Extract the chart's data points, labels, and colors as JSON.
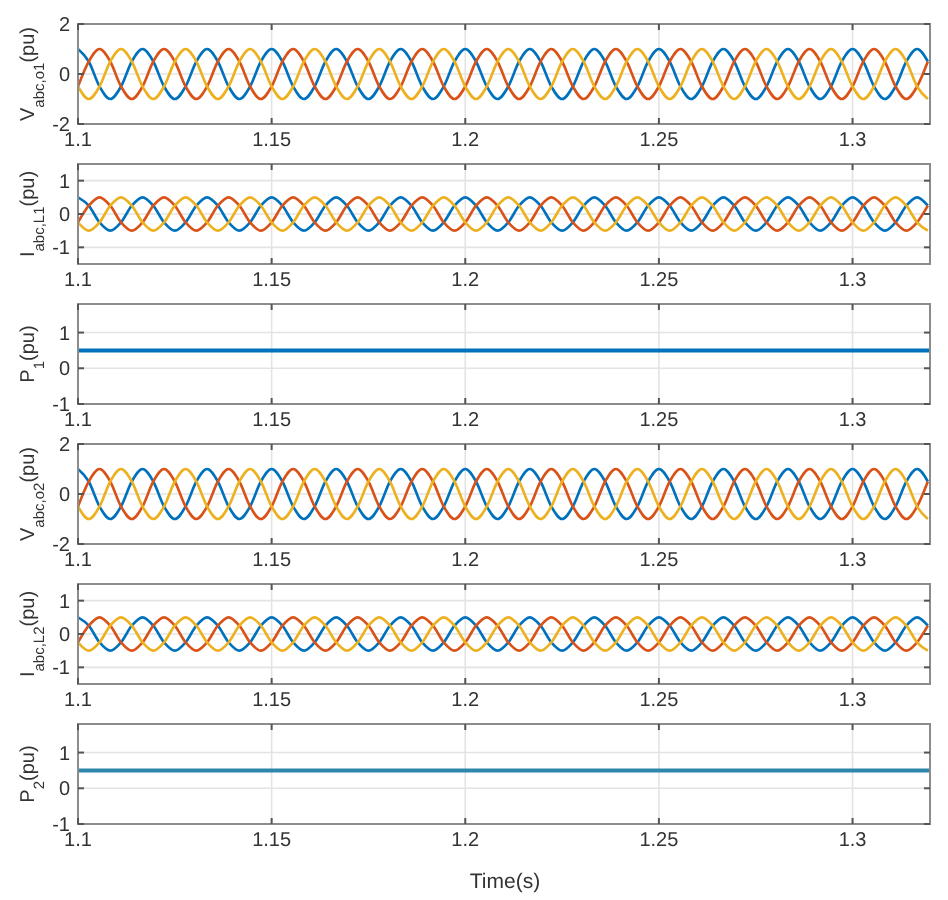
{
  "chart_data": [
    {
      "type": "line",
      "ylabel": "V$_{abc,o1}$(pu)",
      "xlim": [
        1.1,
        1.32
      ],
      "xticks": [
        1.1,
        1.15,
        1.2,
        1.25,
        1.3
      ],
      "ylim": [
        -2,
        2
      ],
      "yticks": [
        -2,
        0,
        2
      ],
      "grid": true,
      "x": [
        1.1,
        1.10278,
        1.10556,
        1.10833,
        1.11111,
        1.11389,
        1.11667,
        1.11944,
        1.12222,
        1.125,
        1.12778,
        1.13056,
        1.13333,
        1.13611,
        1.13889,
        1.14167,
        1.14444,
        1.14722,
        1.15,
        1.15278,
        1.15556,
        1.15833,
        1.16111,
        1.16389,
        1.16667,
        1.16944,
        1.17222,
        1.175,
        1.17778,
        1.18056,
        1.18333,
        1.18611,
        1.18889,
        1.19167,
        1.19444,
        1.19722,
        1.2,
        1.20278,
        1.20556,
        1.20833,
        1.21111,
        1.21389,
        1.21667,
        1.21944,
        1.22222,
        1.225,
        1.22778,
        1.23056,
        1.23333,
        1.23611,
        1.23889,
        1.24167,
        1.24444,
        1.24722,
        1.25,
        1.25278,
        1.25556,
        1.25833,
        1.26111,
        1.26389,
        1.26667,
        1.26944,
        1.27222,
        1.275,
        1.27778,
        1.28056,
        1.28333,
        1.28611,
        1.28889,
        1.29167,
        1.29444,
        1.29722,
        1.3,
        1.30278,
        1.30556,
        1.30833,
        1.31111,
        1.31389,
        1.31667,
        1.31944
      ],
      "series": [
        {
          "color": "#0072bd",
          "values": [
            1,
            0.5,
            -0.5,
            -1,
            -0.5,
            0.5,
            1,
            0.5,
            -0.5,
            -1,
            -0.5,
            0.5,
            1,
            0.5,
            -0.5,
            -1,
            -0.5,
            0.5,
            1,
            0.5,
            -0.5,
            -1,
            -0.5,
            0.5,
            1,
            0.5,
            -0.5,
            -1,
            -0.5,
            0.5,
            1,
            0.5,
            -0.5,
            -1,
            -0.5,
            0.5,
            1,
            0.5,
            -0.5,
            -1,
            -0.5,
            0.5,
            1,
            0.5,
            -0.5,
            -1,
            -0.5,
            0.5,
            1,
            0.5,
            -0.5,
            -1,
            -0.5,
            0.5,
            1,
            0.5,
            -0.5,
            -1,
            -0.5,
            0.5,
            1,
            0.5,
            -0.5,
            -1,
            -0.5,
            0.5,
            1,
            0.5,
            -0.5,
            -1,
            -0.5,
            0.5,
            1,
            0.5,
            -0.5,
            -1,
            -0.5,
            0.5,
            1,
            0.5
          ]
        },
        {
          "color": "#d95319",
          "values": [
            -0.5,
            0.5,
            1,
            0.5,
            -0.5,
            -1,
            -0.5,
            0.5,
            1,
            0.5,
            -0.5,
            -1,
            -0.5,
            0.5,
            1,
            0.5,
            -0.5,
            -1,
            -0.5,
            0.5,
            1,
            0.5,
            -0.5,
            -1,
            -0.5,
            0.5,
            1,
            0.5,
            -0.5,
            -1,
            -0.5,
            0.5,
            1,
            0.5,
            -0.5,
            -1,
            -0.5,
            0.5,
            1,
            0.5,
            -0.5,
            -1,
            -0.5,
            0.5,
            1,
            0.5,
            -0.5,
            -1,
            -0.5,
            0.5,
            1,
            0.5,
            -0.5,
            -1,
            -0.5,
            0.5,
            1,
            0.5,
            -0.5,
            -1,
            -0.5,
            0.5,
            1,
            0.5,
            -0.5,
            -1,
            -0.5,
            0.5,
            1,
            0.5,
            -0.5,
            -1,
            -0.5,
            0.5,
            1,
            0.5,
            -0.5,
            -1,
            -0.5,
            0.5
          ]
        },
        {
          "color": "#edb120",
          "values": [
            -0.5,
            -1,
            -0.5,
            0.5,
            1,
            0.5,
            -0.5,
            -1,
            -0.5,
            0.5,
            1,
            0.5,
            -0.5,
            -1,
            -0.5,
            0.5,
            1,
            0.5,
            -0.5,
            -1,
            -0.5,
            0.5,
            1,
            0.5,
            -0.5,
            -1,
            -0.5,
            0.5,
            1,
            0.5,
            -0.5,
            -1,
            -0.5,
            0.5,
            1,
            0.5,
            -0.5,
            -1,
            -0.5,
            0.5,
            1,
            0.5,
            -0.5,
            -1,
            -0.5,
            0.5,
            1,
            0.5,
            -0.5,
            -1,
            -0.5,
            0.5,
            1,
            0.5,
            -0.5,
            -1,
            -0.5,
            0.5,
            1,
            0.5,
            -0.5,
            -1,
            -0.5,
            0.5,
            1,
            0.5,
            -0.5,
            -1,
            -0.5,
            0.5,
            1,
            0.5,
            -0.5,
            -1,
            -0.5,
            0.5,
            1,
            0.5,
            -0.5,
            -1
          ]
        }
      ]
    },
    {
      "type": "line",
      "ylabel": "I$_{abc,L1}$(pu)",
      "xlim": [
        1.1,
        1.32
      ],
      "xticks": [
        1.1,
        1.15,
        1.2,
        1.25,
        1.3
      ],
      "ylim": [
        -1.5,
        1.5
      ],
      "yticks": [
        -1,
        0,
        1
      ],
      "grid": true,
      "x": [
        1.1,
        1.10278,
        1.10556,
        1.10833,
        1.11111,
        1.11389,
        1.11667,
        1.11944,
        1.12222,
        1.125,
        1.12778,
        1.13056,
        1.13333,
        1.13611,
        1.13889,
        1.14167,
        1.14444,
        1.14722,
        1.15,
        1.15278,
        1.15556,
        1.15833,
        1.16111,
        1.16389,
        1.16667,
        1.16944,
        1.17222,
        1.175,
        1.17778,
        1.18056,
        1.18333,
        1.18611,
        1.18889,
        1.19167,
        1.19444,
        1.19722,
        1.2,
        1.20278,
        1.20556,
        1.20833,
        1.21111,
        1.21389,
        1.21667,
        1.21944,
        1.22222,
        1.225,
        1.22778,
        1.23056,
        1.23333,
        1.23611,
        1.23889,
        1.24167,
        1.24444,
        1.24722,
        1.25,
        1.25278,
        1.25556,
        1.25833,
        1.26111,
        1.26389,
        1.26667,
        1.26944,
        1.27222,
        1.275,
        1.27778,
        1.28056,
        1.28333,
        1.28611,
        1.28889,
        1.29167,
        1.29444,
        1.29722,
        1.3,
        1.30278,
        1.30556,
        1.30833,
        1.31111,
        1.31389,
        1.31667,
        1.31944
      ],
      "series": [
        {
          "color": "#0072bd",
          "values": [
            0.5,
            0.25,
            -0.25,
            -0.5,
            -0.25,
            0.25,
            0.5,
            0.25,
            -0.25,
            -0.5,
            -0.25,
            0.25,
            0.5,
            0.25,
            -0.25,
            -0.5,
            -0.25,
            0.25,
            0.5,
            0.25,
            -0.25,
            -0.5,
            -0.25,
            0.25,
            0.5,
            0.25,
            -0.25,
            -0.5,
            -0.25,
            0.25,
            0.5,
            0.25,
            -0.25,
            -0.5,
            -0.25,
            0.25,
            0.5,
            0.25,
            -0.25,
            -0.5,
            -0.25,
            0.25,
            0.5,
            0.25,
            -0.25,
            -0.5,
            -0.25,
            0.25,
            0.5,
            0.25,
            -0.25,
            -0.5,
            -0.25,
            0.25,
            0.5,
            0.25,
            -0.25,
            -0.5,
            -0.25,
            0.25,
            0.5,
            0.25,
            -0.25,
            -0.5,
            -0.25,
            0.25,
            0.5,
            0.25,
            -0.25,
            -0.5,
            -0.25,
            0.25,
            0.5,
            0.25,
            -0.25,
            -0.5,
            -0.25,
            0.25,
            0.5,
            0.25
          ]
        },
        {
          "color": "#d95319",
          "values": [
            -0.25,
            0.25,
            0.5,
            0.25,
            -0.25,
            -0.5,
            -0.25,
            0.25,
            0.5,
            0.25,
            -0.25,
            -0.5,
            -0.25,
            0.25,
            0.5,
            0.25,
            -0.25,
            -0.5,
            -0.25,
            0.25,
            0.5,
            0.25,
            -0.25,
            -0.5,
            -0.25,
            0.25,
            0.5,
            0.25,
            -0.25,
            -0.5,
            -0.25,
            0.25,
            0.5,
            0.25,
            -0.25,
            -0.5,
            -0.25,
            0.25,
            0.5,
            0.25,
            -0.25,
            -0.5,
            -0.25,
            0.25,
            0.5,
            0.25,
            -0.25,
            -0.5,
            -0.25,
            0.25,
            0.5,
            0.25,
            -0.25,
            -0.5,
            -0.25,
            0.25,
            0.5,
            0.25,
            -0.25,
            -0.5,
            -0.25,
            0.25,
            0.5,
            0.25,
            -0.25,
            -0.5,
            -0.25,
            0.25,
            0.5,
            0.25,
            -0.25,
            -0.5,
            -0.25,
            0.25,
            0.5,
            0.25,
            -0.25,
            -0.5,
            -0.25,
            0.25
          ]
        },
        {
          "color": "#edb120",
          "values": [
            -0.25,
            -0.5,
            -0.25,
            0.25,
            0.5,
            0.25,
            -0.25,
            -0.5,
            -0.25,
            0.25,
            0.5,
            0.25,
            -0.25,
            -0.5,
            -0.25,
            0.25,
            0.5,
            0.25,
            -0.25,
            -0.5,
            -0.25,
            0.25,
            0.5,
            0.25,
            -0.25,
            -0.5,
            -0.25,
            0.25,
            0.5,
            0.25,
            -0.25,
            -0.5,
            -0.25,
            0.25,
            0.5,
            0.25,
            -0.25,
            -0.5,
            -0.25,
            0.25,
            0.5,
            0.25,
            -0.25,
            -0.5,
            -0.25,
            0.25,
            0.5,
            0.25,
            -0.25,
            -0.5,
            -0.25,
            0.25,
            0.5,
            0.25,
            -0.25,
            -0.5,
            -0.25,
            0.25,
            0.5,
            0.25,
            -0.25,
            -0.5,
            -0.25,
            0.25,
            0.5,
            0.25,
            -0.25,
            -0.5,
            -0.25,
            0.25,
            0.5,
            0.25,
            -0.25,
            -0.5,
            -0.25,
            0.25,
            0.5,
            0.25,
            -0.25,
            -0.5
          ]
        }
      ]
    },
    {
      "type": "line",
      "ylabel": "P$_{1}$(pu)",
      "xlim": [
        1.1,
        1.32
      ],
      "xticks": [
        1.1,
        1.15,
        1.2,
        1.25,
        1.3
      ],
      "ylim": [
        -1,
        1.8
      ],
      "yticks": [
        -1,
        0,
        1
      ],
      "grid": true,
      "x": [
        1.1,
        1.32
      ],
      "series": [
        {
          "color": "#0072bd",
          "values": [
            0.5,
            0.5
          ]
        }
      ]
    },
    {
      "type": "line",
      "ylabel": "V$_{abc,o2}$(pu)",
      "xlim": [
        1.1,
        1.32
      ],
      "xticks": [
        1.1,
        1.15,
        1.2,
        1.25,
        1.3
      ],
      "ylim": [
        -2,
        2
      ],
      "yticks": [
        -2,
        0,
        2
      ],
      "grid": true,
      "x": [
        1.1,
        1.10278,
        1.10556,
        1.10833,
        1.11111,
        1.11389,
        1.11667,
        1.11944,
        1.12222,
        1.125,
        1.12778,
        1.13056,
        1.13333,
        1.13611,
        1.13889,
        1.14167,
        1.14444,
        1.14722,
        1.15,
        1.15278,
        1.15556,
        1.15833,
        1.16111,
        1.16389,
        1.16667,
        1.16944,
        1.17222,
        1.175,
        1.17778,
        1.18056,
        1.18333,
        1.18611,
        1.18889,
        1.19167,
        1.19444,
        1.19722,
        1.2,
        1.20278,
        1.20556,
        1.20833,
        1.21111,
        1.21389,
        1.21667,
        1.21944,
        1.22222,
        1.225,
        1.22778,
        1.23056,
        1.23333,
        1.23611,
        1.23889,
        1.24167,
        1.24444,
        1.24722,
        1.25,
        1.25278,
        1.25556,
        1.25833,
        1.26111,
        1.26389,
        1.26667,
        1.26944,
        1.27222,
        1.275,
        1.27778,
        1.28056,
        1.28333,
        1.28611,
        1.28889,
        1.29167,
        1.29444,
        1.29722,
        1.3,
        1.30278,
        1.30556,
        1.30833,
        1.31111,
        1.31389,
        1.31667,
        1.31944
      ],
      "series": [
        {
          "color": "#0072bd",
          "values": [
            1,
            0.5,
            -0.5,
            -1,
            -0.5,
            0.5,
            1,
            0.5,
            -0.5,
            -1,
            -0.5,
            0.5,
            1,
            0.5,
            -0.5,
            -1,
            -0.5,
            0.5,
            1,
            0.5,
            -0.5,
            -1,
            -0.5,
            0.5,
            1,
            0.5,
            -0.5,
            -1,
            -0.5,
            0.5,
            1,
            0.5,
            -0.5,
            -1,
            -0.5,
            0.5,
            1,
            0.5,
            -0.5,
            -1,
            -0.5,
            0.5,
            1,
            0.5,
            -0.5,
            -1,
            -0.5,
            0.5,
            1,
            0.5,
            -0.5,
            -1,
            -0.5,
            0.5,
            1,
            0.5,
            -0.5,
            -1,
            -0.5,
            0.5,
            1,
            0.5,
            -0.5,
            -1,
            -0.5,
            0.5,
            1,
            0.5,
            -0.5,
            -1,
            -0.5,
            0.5,
            1,
            0.5,
            -0.5,
            -1,
            -0.5,
            0.5,
            1,
            0.5
          ]
        },
        {
          "color": "#d95319",
          "values": [
            -0.5,
            0.5,
            1,
            0.5,
            -0.5,
            -1,
            -0.5,
            0.5,
            1,
            0.5,
            -0.5,
            -1,
            -0.5,
            0.5,
            1,
            0.5,
            -0.5,
            -1,
            -0.5,
            0.5,
            1,
            0.5,
            -0.5,
            -1,
            -0.5,
            0.5,
            1,
            0.5,
            -0.5,
            -1,
            -0.5,
            0.5,
            1,
            0.5,
            -0.5,
            -1,
            -0.5,
            0.5,
            1,
            0.5,
            -0.5,
            -1,
            -0.5,
            0.5,
            1,
            0.5,
            -0.5,
            -1,
            -0.5,
            0.5,
            1,
            0.5,
            -0.5,
            -1,
            -0.5,
            0.5,
            1,
            0.5,
            -0.5,
            -1,
            -0.5,
            0.5,
            1,
            0.5,
            -0.5,
            -1,
            -0.5,
            0.5,
            1,
            0.5,
            -0.5,
            -1,
            -0.5,
            0.5,
            1,
            0.5,
            -0.5,
            -1,
            -0.5,
            0.5
          ]
        },
        {
          "color": "#edb120",
          "values": [
            -0.5,
            -1,
            -0.5,
            0.5,
            1,
            0.5,
            -0.5,
            -1,
            -0.5,
            0.5,
            1,
            0.5,
            -0.5,
            -1,
            -0.5,
            0.5,
            1,
            0.5,
            -0.5,
            -1,
            -0.5,
            0.5,
            1,
            0.5,
            -0.5,
            -1,
            -0.5,
            0.5,
            1,
            0.5,
            -0.5,
            -1,
            -0.5,
            0.5,
            1,
            0.5,
            -0.5,
            -1,
            -0.5,
            0.5,
            1,
            0.5,
            -0.5,
            -1,
            -0.5,
            0.5,
            1,
            0.5,
            -0.5,
            -1,
            -0.5,
            0.5,
            1,
            0.5,
            -0.5,
            -1,
            -0.5,
            0.5,
            1,
            0.5,
            -0.5,
            -1,
            -0.5,
            0.5,
            1,
            0.5,
            -0.5,
            -1,
            -0.5,
            0.5,
            1,
            0.5,
            -0.5,
            -1,
            -0.5,
            0.5,
            1,
            0.5,
            -0.5,
            -1
          ]
        }
      ]
    },
    {
      "type": "line",
      "ylabel": "I$_{abc,L2}$(pu)",
      "xlim": [
        1.1,
        1.32
      ],
      "xticks": [
        1.1,
        1.15,
        1.2,
        1.25,
        1.3
      ],
      "ylim": [
        -1.5,
        1.5
      ],
      "yticks": [
        -1,
        0,
        1
      ],
      "grid": true,
      "x": [
        1.1,
        1.10278,
        1.10556,
        1.10833,
        1.11111,
        1.11389,
        1.11667,
        1.11944,
        1.12222,
        1.125,
        1.12778,
        1.13056,
        1.13333,
        1.13611,
        1.13889,
        1.14167,
        1.14444,
        1.14722,
        1.15,
        1.15278,
        1.15556,
        1.15833,
        1.16111,
        1.16389,
        1.16667,
        1.16944,
        1.17222,
        1.175,
        1.17778,
        1.18056,
        1.18333,
        1.18611,
        1.18889,
        1.19167,
        1.19444,
        1.19722,
        1.2,
        1.20278,
        1.20556,
        1.20833,
        1.21111,
        1.21389,
        1.21667,
        1.21944,
        1.22222,
        1.225,
        1.22778,
        1.23056,
        1.23333,
        1.23611,
        1.23889,
        1.24167,
        1.24444,
        1.24722,
        1.25,
        1.25278,
        1.25556,
        1.25833,
        1.26111,
        1.26389,
        1.26667,
        1.26944,
        1.27222,
        1.275,
        1.27778,
        1.28056,
        1.28333,
        1.28611,
        1.28889,
        1.29167,
        1.29444,
        1.29722,
        1.3,
        1.30278,
        1.30556,
        1.30833,
        1.31111,
        1.31389,
        1.31667,
        1.31944
      ],
      "series": [
        {
          "color": "#0072bd",
          "values": [
            0.5,
            0.25,
            -0.25,
            -0.5,
            -0.25,
            0.25,
            0.5,
            0.25,
            -0.25,
            -0.5,
            -0.25,
            0.25,
            0.5,
            0.25,
            -0.25,
            -0.5,
            -0.25,
            0.25,
            0.5,
            0.25,
            -0.25,
            -0.5,
            -0.25,
            0.25,
            0.5,
            0.25,
            -0.25,
            -0.5,
            -0.25,
            0.25,
            0.5,
            0.25,
            -0.25,
            -0.5,
            -0.25,
            0.25,
            0.5,
            0.25,
            -0.25,
            -0.5,
            -0.25,
            0.25,
            0.5,
            0.25,
            -0.25,
            -0.5,
            -0.25,
            0.25,
            0.5,
            0.25,
            -0.25,
            -0.5,
            -0.25,
            0.25,
            0.5,
            0.25,
            -0.25,
            -0.5,
            -0.25,
            0.25,
            0.5,
            0.25,
            -0.25,
            -0.5,
            -0.25,
            0.25,
            0.5,
            0.25,
            -0.25,
            -0.5,
            -0.25,
            0.25,
            0.5,
            0.25,
            -0.25,
            -0.5,
            -0.25,
            0.25,
            0.5,
            0.25
          ]
        },
        {
          "color": "#d95319",
          "values": [
            -0.25,
            0.25,
            0.5,
            0.25,
            -0.25,
            -0.5,
            -0.25,
            0.25,
            0.5,
            0.25,
            -0.25,
            -0.5,
            -0.25,
            0.25,
            0.5,
            0.25,
            -0.25,
            -0.5,
            -0.25,
            0.25,
            0.5,
            0.25,
            -0.25,
            -0.5,
            -0.25,
            0.25,
            0.5,
            0.25,
            -0.25,
            -0.5,
            -0.25,
            0.25,
            0.5,
            0.25,
            -0.25,
            -0.5,
            -0.25,
            0.25,
            0.5,
            0.25,
            -0.25,
            -0.5,
            -0.25,
            0.25,
            0.5,
            0.25,
            -0.25,
            -0.5,
            -0.25,
            0.25,
            0.5,
            0.25,
            -0.25,
            -0.5,
            -0.25,
            0.25,
            0.5,
            0.25,
            -0.25,
            -0.5,
            -0.25,
            0.25,
            0.5,
            0.25,
            -0.25,
            -0.5,
            -0.25,
            0.25,
            0.5,
            0.25,
            -0.25,
            -0.5,
            -0.25,
            0.25,
            0.5,
            0.25,
            -0.25,
            -0.5,
            -0.25,
            0.25
          ]
        },
        {
          "color": "#edb120",
          "values": [
            -0.25,
            -0.5,
            -0.25,
            0.25,
            0.5,
            0.25,
            -0.25,
            -0.5,
            -0.25,
            0.25,
            0.5,
            0.25,
            -0.25,
            -0.5,
            -0.25,
            0.25,
            0.5,
            0.25,
            -0.25,
            -0.5,
            -0.25,
            0.25,
            0.5,
            0.25,
            -0.25,
            -0.5,
            -0.25,
            0.25,
            0.5,
            0.25,
            -0.25,
            -0.5,
            -0.25,
            0.25,
            0.5,
            0.25,
            -0.25,
            -0.5,
            -0.25,
            0.25,
            0.5,
            0.25,
            -0.25,
            -0.5,
            -0.25,
            0.25,
            0.5,
            0.25,
            -0.25,
            -0.5,
            -0.25,
            0.25,
            0.5,
            0.25,
            -0.25,
            -0.5,
            -0.25,
            0.25,
            0.5,
            0.25,
            -0.25,
            -0.5,
            -0.25,
            0.25,
            0.5,
            0.25,
            -0.25,
            -0.5,
            -0.25,
            0.25,
            0.5,
            0.25,
            -0.25,
            -0.5,
            -0.25,
            0.25,
            0.5,
            0.25,
            -0.25,
            -0.5
          ]
        }
      ]
    },
    {
      "type": "line",
      "ylabel": "P$_{2}$(pu)",
      "xlabel": "Time(s)",
      "xlim": [
        1.1,
        1.32
      ],
      "xticks": [
        1.1,
        1.15,
        1.2,
        1.25,
        1.3
      ],
      "ylim": [
        -1,
        1.8
      ],
      "yticks": [
        -1,
        0,
        1
      ],
      "grid": true,
      "x": [
        1.1,
        1.32
      ],
      "series": [
        {
          "color": "#2e86ab",
          "values": [
            0.5,
            0.5
          ]
        }
      ]
    }
  ]
}
